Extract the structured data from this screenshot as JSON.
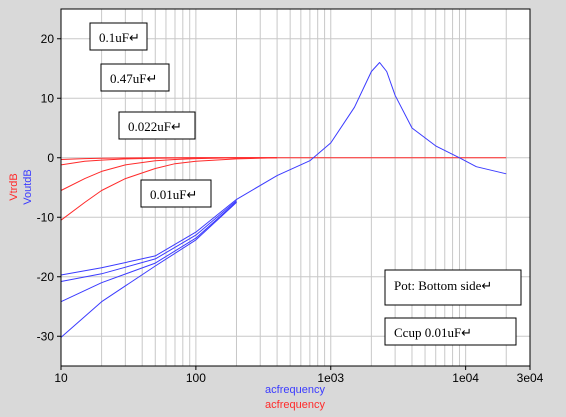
{
  "chart_data": {
    "type": "line",
    "xscale": "log",
    "xlim": [
      10,
      30000
    ],
    "ylim": [
      -35,
      25
    ],
    "grid": true,
    "x_ticks": [
      {
        "value": 10,
        "label": "10"
      },
      {
        "value": 100,
        "label": "100"
      },
      {
        "value": 1000,
        "label": "1e03"
      },
      {
        "value": 10000,
        "label": "1e04"
      },
      {
        "value": 30000,
        "label": "3e04"
      }
    ],
    "y_ticks": [
      {
        "value": 20,
        "label": "20"
      },
      {
        "value": 10,
        "label": "10"
      },
      {
        "value": 0,
        "label": "0"
      },
      {
        "value": -10,
        "label": "-10"
      },
      {
        "value": -20,
        "label": "-20"
      },
      {
        "value": -30,
        "label": "-30"
      }
    ],
    "xlabels": [
      {
        "text": "acfrequency",
        "color": "#3b3bff"
      },
      {
        "text": "acfrequency",
        "color": "#ff2a2a"
      }
    ],
    "ylabels": [
      {
        "text": "VtrdB",
        "color": "#ff2a2a"
      },
      {
        "text": "VoutdB",
        "color": "#3b3bff"
      }
    ],
    "series": [
      {
        "color": "#ff2a2a",
        "x": [
          10,
          15,
          20,
          30,
          50,
          70,
          100,
          200,
          400
        ],
        "y": [
          -0.3,
          -0.15,
          -0.1,
          -0.05,
          0,
          0,
          0,
          0,
          0
        ]
      },
      {
        "color": "#ff2a2a",
        "x": [
          10,
          15,
          20,
          30,
          50,
          70,
          100,
          200,
          400
        ],
        "y": [
          -1.2,
          -0.6,
          -0.4,
          -0.2,
          -0.1,
          -0.05,
          0,
          0,
          0
        ]
      },
      {
        "color": "#ff2a2a",
        "x": [
          10,
          15,
          20,
          30,
          50,
          70,
          100,
          200,
          400
        ],
        "y": [
          -5.5,
          -3.5,
          -2.3,
          -1.2,
          -0.5,
          -0.3,
          -0.15,
          0,
          0
        ]
      },
      {
        "color": "#ff2a2a",
        "x": [
          10,
          15,
          20,
          30,
          50,
          70,
          100,
          200,
          400
        ],
        "y": [
          -10.5,
          -7.5,
          -5.5,
          -3.5,
          -1.8,
          -1,
          -0.6,
          -0.2,
          0
        ]
      },
      {
        "color": "#ff2a2a",
        "x": [
          400,
          1000,
          5000,
          20000
        ],
        "y": [
          0,
          0,
          0,
          0
        ]
      },
      {
        "color": "#3b3bff",
        "x": [
          10,
          20,
          50,
          100,
          200,
          400,
          700,
          1000,
          1500,
          2000,
          2300,
          2600,
          3000,
          4000,
          6000,
          9000,
          12000,
          20000
        ],
        "y": [
          -19.7,
          -18.5,
          -16.5,
          -12.5,
          -7,
          -3,
          -0.5,
          2.5,
          8.5,
          14.5,
          16,
          14.5,
          10.5,
          5,
          2,
          0,
          -1.5,
          -2.7
        ]
      },
      {
        "color": "#3b3bff",
        "x": [
          10,
          20,
          50,
          100,
          200
        ],
        "y": [
          -20.8,
          -19.5,
          -17,
          -13,
          -7.2
        ]
      },
      {
        "color": "#3b3bff",
        "x": [
          10,
          20,
          50,
          100,
          200
        ],
        "y": [
          -24.2,
          -21,
          -17.7,
          -13.5,
          -7.4
        ]
      },
      {
        "color": "#3b3bff",
        "x": [
          10,
          20,
          50,
          100,
          200
        ],
        "y": [
          -30.2,
          -24.2,
          -18.2,
          -13.8,
          -7.5
        ]
      }
    ]
  },
  "annotations": [
    {
      "text": "0.1uF↵",
      "anchor_x": 10,
      "anchor_y": 19
    },
    {
      "text": "0.47uF↵",
      "anchor_x": 10,
      "anchor_y": 19
    },
    {
      "text": "0.022uF↵",
      "anchor_x": 10,
      "anchor_y": 19
    },
    {
      "text": "0.01uF↵",
      "anchor_x": 10,
      "anchor_y": 19
    },
    {
      "text": "Pot: Bottom side↵",
      "anchor_x": 10,
      "anchor_y": 19
    },
    {
      "text": "Ccup 0.01uF↵",
      "anchor_x": 10,
      "anchor_y": 19
    }
  ]
}
